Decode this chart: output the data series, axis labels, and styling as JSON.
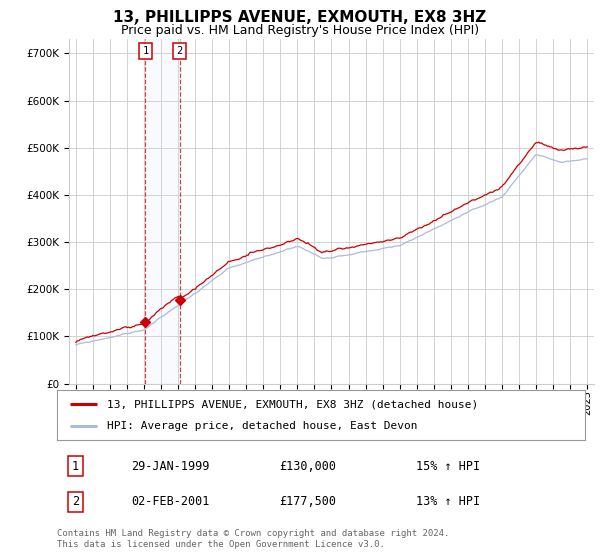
{
  "title": "13, PHILLIPPS AVENUE, EXMOUTH, EX8 3HZ",
  "subtitle": "Price paid vs. HM Land Registry's House Price Index (HPI)",
  "ytick_values": [
    0,
    100000,
    200000,
    300000,
    400000,
    500000,
    600000,
    700000
  ],
  "ylim": [
    0,
    730000
  ],
  "xlim_start": 1994.6,
  "xlim_end": 2025.4,
  "background_color": "#ffffff",
  "grid_color": "#cccccc",
  "hpi_color": "#aabbdd",
  "price_color": "#cc0000",
  "sale1_x": 1999.08,
  "sale1_y": 130000,
  "sale2_x": 2001.09,
  "sale2_y": 177500,
  "legend_entry1": "13, PHILLIPPS AVENUE, EXMOUTH, EX8 3HZ (detached house)",
  "legend_entry2": "HPI: Average price, detached house, East Devon",
  "table_row1": [
    "1",
    "29-JAN-1999",
    "£130,000",
    "15% ↑ HPI"
  ],
  "table_row2": [
    "2",
    "02-FEB-2001",
    "£177,500",
    "13% ↑ HPI"
  ],
  "footnote": "Contains HM Land Registry data © Crown copyright and database right 2024.\nThis data is licensed under the Open Government Licence v3.0.",
  "title_fontsize": 11,
  "subtitle_fontsize": 9,
  "tick_fontsize": 7.5,
  "legend_fontsize": 8,
  "table_fontsize": 8.5,
  "footnote_fontsize": 6.5
}
